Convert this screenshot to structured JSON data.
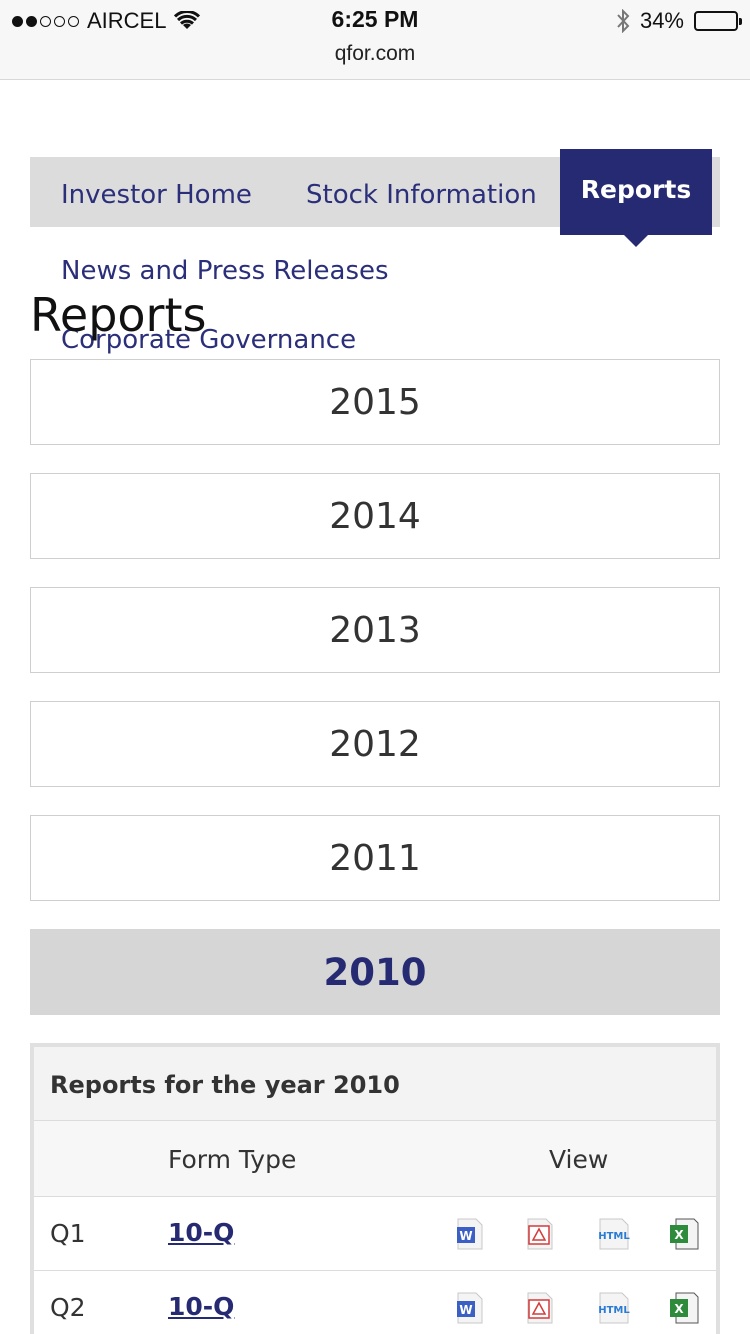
{
  "status_bar": {
    "carrier": "AIRCEL",
    "time": "6:25 PM",
    "url": "qfor.com",
    "battery": "34%",
    "battery_level": 0.34
  },
  "nav": {
    "items": [
      "Investor Home",
      "Stock Information",
      "Reports",
      "News and Press Releases",
      "Corporate Governance"
    ],
    "active": "Reports"
  },
  "page_title": "Reports",
  "years": [
    "2015",
    "2014",
    "2013",
    "2012",
    "2011",
    "2010"
  ],
  "active_year": "2010",
  "table": {
    "caption": "Reports for the year 2010",
    "headers": [
      "",
      "Form Type",
      "View"
    ],
    "rows": [
      {
        "period": "Q1",
        "form": "10-Q",
        "views": [
          "word-icon",
          "pdf-icon",
          "html-icon",
          "excel-icon"
        ]
      },
      {
        "period": "Q2",
        "form": "10-Q",
        "views": [
          "word-icon",
          "pdf-icon",
          "html-icon",
          "excel-icon"
        ]
      }
    ]
  },
  "colors": {
    "brand": "#262a72",
    "nav_bg": "#dcdcdc",
    "active_year_bg": "#d6d6d6"
  }
}
